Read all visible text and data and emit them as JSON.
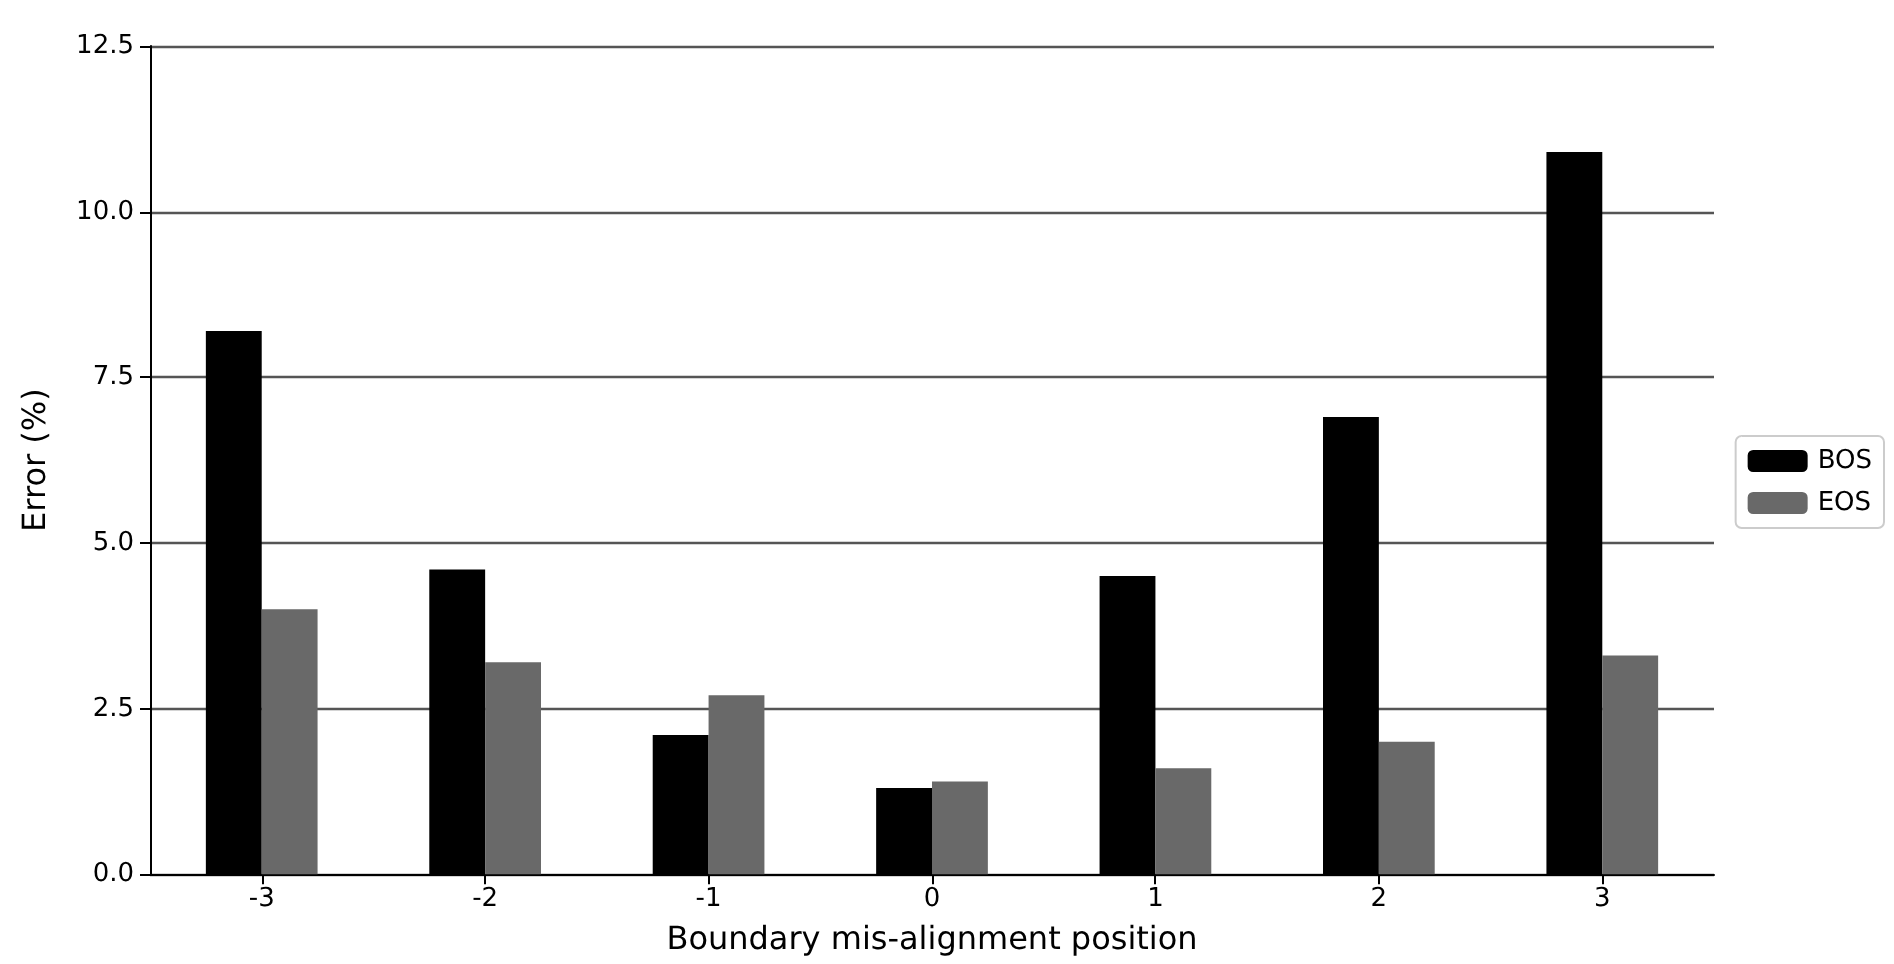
{
  "chart_data": {
    "type": "bar",
    "xlabel": "Boundary mis-alignment position",
    "ylabel": "Error (%)",
    "categories": [
      "-3",
      "-2",
      "-1",
      "0",
      "1",
      "2",
      "3"
    ],
    "series": [
      {
        "name": "BOS",
        "color": "#000000",
        "values": [
          8.2,
          4.6,
          2.1,
          1.3,
          4.5,
          6.9,
          10.9
        ]
      },
      {
        "name": "EOS",
        "color": "#696969",
        "values": [
          4.0,
          3.2,
          2.7,
          1.4,
          1.6,
          2.0,
          3.3
        ]
      }
    ],
    "ylim": [
      0,
      12.5
    ],
    "yticks": [
      {
        "value": 0,
        "label": "0.0"
      },
      {
        "value": 2.5,
        "label": "2.5"
      },
      {
        "value": 5,
        "label": "5.0"
      },
      {
        "value": 7.5,
        "label": "7.5"
      },
      {
        "value": 10,
        "label": "10.0"
      },
      {
        "value": 12.5,
        "label": "12.5"
      }
    ],
    "grid": "y",
    "legend": "right"
  }
}
